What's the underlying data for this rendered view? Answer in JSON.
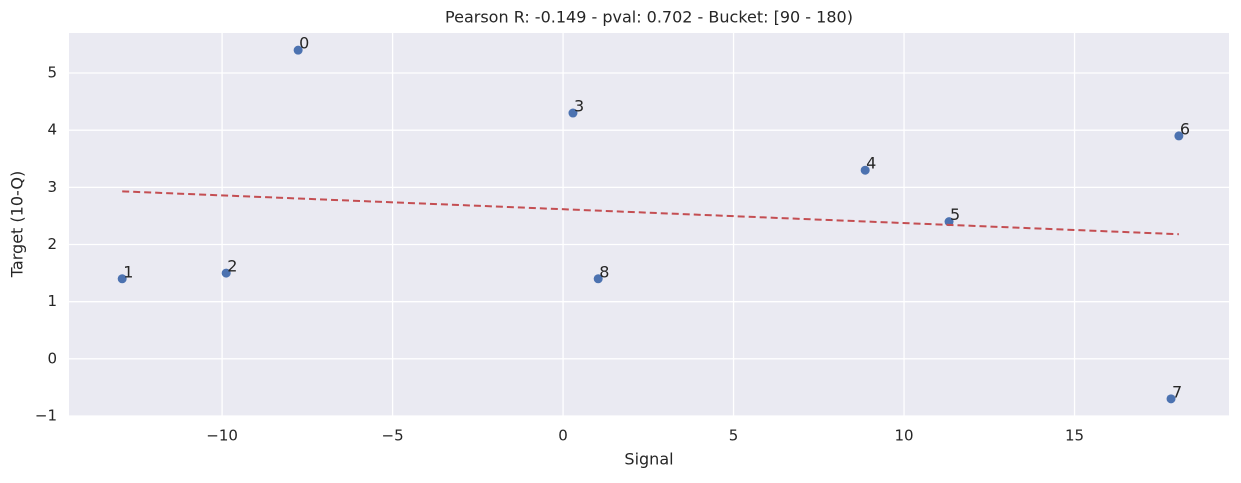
{
  "chart_data": {
    "type": "scatter",
    "title": "Pearson R: -0.149 - pval: 0.702 - Bucket: [90 - 180)",
    "x_label": "Signal",
    "y_label": "Target (10-Q)",
    "series": [
      {
        "type": "scatter",
        "color": "#4c72b0",
        "x": [
          -7.77,
          -12.93,
          -9.88,
          0.29,
          8.86,
          11.32,
          18.06,
          17.83,
          1.03
        ],
        "values": [
          5.4,
          1.4,
          1.5,
          4.3,
          3.3,
          2.4,
          3.9,
          -0.7,
          1.4
        ],
        "point_labels": [
          "0",
          "1",
          "2",
          "3",
          "4",
          "5",
          "6",
          "7",
          "8"
        ]
      },
      {
        "type": "line",
        "color": "#c44e52",
        "dashed": true,
        "x": [
          -12.93,
          18.06
        ],
        "values": [
          2.93,
          2.18
        ]
      }
    ],
    "xlim": [
      -14.49,
      19.53
    ],
    "ylim": [
      -1.0,
      5.7
    ],
    "xticks": [
      {
        "value": -10,
        "label": "−10"
      },
      {
        "value": -5,
        "label": "−5"
      },
      0,
      5,
      10,
      15
    ],
    "yticks": [
      {
        "value": -1,
        "label": "−1"
      },
      0,
      1,
      2,
      3,
      4,
      5
    ],
    "grid": true
  }
}
